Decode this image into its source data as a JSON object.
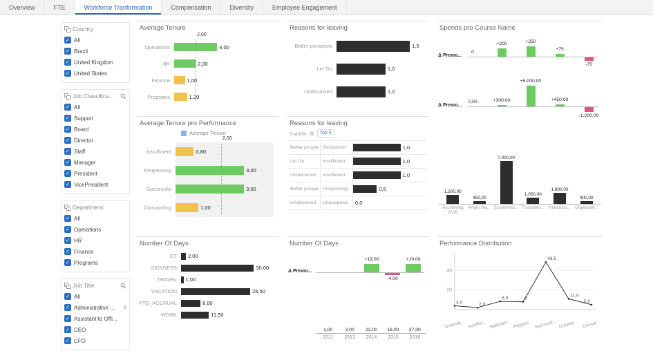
{
  "tabs": {
    "items": [
      {
        "label": "Overview",
        "active": false
      },
      {
        "label": "FTE",
        "active": false
      },
      {
        "label": "Workforce Tranformation",
        "active": true
      },
      {
        "label": "Compensation",
        "active": false
      },
      {
        "label": "Diversity",
        "active": false
      },
      {
        "label": "Employee Engagement",
        "active": false
      }
    ]
  },
  "colors": {
    "green": "#6ecb63",
    "yellow": "#f0c24b",
    "dark": "#2e2e2e",
    "pink": "#e2557e",
    "blue_accent": "#2a6fc0",
    "legend_blue": "#85b6e0",
    "checkbox_blue": "#2b6fc2"
  },
  "filters": {
    "groups": [
      {
        "title": "Country",
        "has_search": false,
        "items": [
          {
            "label": "All",
            "checked": true
          },
          {
            "label": "Brazil",
            "checked": true
          },
          {
            "label": "United Kingdom",
            "checked": true
          },
          {
            "label": "United States",
            "checked": true
          }
        ]
      },
      {
        "title": "Job Classifica...",
        "has_search": true,
        "items": [
          {
            "label": "All",
            "checked": true
          },
          {
            "label": "Support",
            "checked": true
          },
          {
            "label": "Board",
            "checked": true
          },
          {
            "label": "Director",
            "checked": true
          },
          {
            "label": "Staff",
            "checked": true
          },
          {
            "label": "Manager",
            "checked": true
          },
          {
            "label": "President",
            "checked": true
          },
          {
            "label": "VicePresident",
            "checked": true
          }
        ]
      },
      {
        "title": "Department",
        "has_search": false,
        "items": [
          {
            "label": "All",
            "checked": true
          },
          {
            "label": "Operations",
            "checked": true
          },
          {
            "label": "HR",
            "checked": true
          },
          {
            "label": "Finance",
            "checked": true
          },
          {
            "label": "Programs",
            "checked": true
          }
        ]
      },
      {
        "title": "Job Title",
        "has_search": true,
        "items": [
          {
            "label": "All",
            "checked": true
          },
          {
            "label": "Administrative ...",
            "checked": true,
            "badge": "8"
          },
          {
            "label": "Assistant to Offi...",
            "checked": true
          },
          {
            "label": "CEO",
            "checked": true
          },
          {
            "label": "CFO",
            "checked": true
          }
        ]
      }
    ]
  },
  "chart_data": [
    {
      "type": "bar",
      "title": "Average Tenure",
      "categories": [
        "Operations",
        "HR",
        "Finance",
        "Programs"
      ],
      "values": [
        4.0,
        2.0,
        1.0,
        1.2
      ],
      "value_labels": [
        "4,00",
        "2,00",
        "1,00",
        "1,20"
      ],
      "bar_colors": [
        "green",
        "green",
        "yellow",
        "yellow"
      ],
      "xmax": 9,
      "ref_line": {
        "value": 2.0,
        "label": "2,00"
      }
    },
    {
      "type": "bar",
      "title": "Reasons for leaving",
      "categories": [
        "Better prospects",
        "Let Go",
        "Undisclosed"
      ],
      "values": [
        1.5,
        1.0,
        1.0
      ],
      "value_labels": [
        "1,5",
        "1,0",
        "1,0"
      ],
      "bar_colors": [
        "dark",
        "dark",
        "dark"
      ],
      "xmax": 1.75
    },
    {
      "type": "spends",
      "title": "Spends pro Course Name",
      "waterfalls": [
        {
          "label": "Δ Previo...",
          "max": 250,
          "items": [
            {
              "text": "0",
              "v": 0
            },
            {
              "text": "+200",
              "v": 200
            },
            {
              "text": "+250",
              "v": 250
            },
            {
              "text": "+75",
              "v": 75
            },
            {
              "text": "-75",
              "v": -75
            }
          ]
        },
        {
          "label": "Δ Previo...",
          "max": 5000,
          "items": [
            {
              "text": "0,00",
              "v": 0
            },
            {
              "text": "+300,00",
              "v": 300
            },
            {
              "text": "+5.000,00",
              "v": 5000
            },
            {
              "text": "+450,00",
              "v": 450
            },
            {
              "text": "-1.200,00",
              "v": -1200
            }
          ]
        }
      ],
      "column": {
        "categories": [
          "Accounting 2016",
          "Anger Ma...",
          "Economics...",
          "Foundatio...",
          "Introducti...",
          "Organizati..."
        ],
        "values": [
          1500,
          450,
          7000,
          1050,
          1800,
          400
        ],
        "value_labels": [
          "1.500,00",
          "450,00",
          "7.000,00",
          "1.050,00",
          "1.800,00",
          "400,00"
        ]
      }
    },
    {
      "type": "bar",
      "title": "Average Tenure pro Performance",
      "legend": {
        "label": "Average Tenure"
      },
      "categories": [
        "Insufficient",
        "Progressing",
        "Successful",
        "Outstanding"
      ],
      "values": [
        0.8,
        3.0,
        3.0,
        1.0
      ],
      "value_labels": [
        "0,80",
        "3,00",
        "3,00",
        "1,00"
      ],
      "bar_colors": [
        "yellow",
        "green",
        "green",
        "yellow"
      ],
      "xmax": 4.3,
      "ref_line": {
        "value": 2.0,
        "label": "2,00"
      },
      "plot_bg": "#f1f1f1"
    },
    {
      "type": "bar2",
      "title": "Reasons for leaving",
      "subtitle": {
        "left": "Subtitle",
        "right": "Top 5"
      },
      "xmax": 1.4,
      "rows": [
        {
          "label1": "Better prospe...",
          "label2": "Successful",
          "value": 1.0,
          "value_label": "1,0"
        },
        {
          "label1": "Let Go",
          "label2": "Insufficient",
          "value": 1.0,
          "value_label": "1,0"
        },
        {
          "label1": "Undisclosed",
          "label2": "Insufficient",
          "value": 1.0,
          "value_label": "1,0"
        },
        {
          "label1": "Better prospe...",
          "label2": "Progressing",
          "value": 0.5,
          "value_label": "0,5"
        },
        {
          "label1": "Undisclosed",
          "label2": "Unassigned",
          "value": 0.0,
          "value_label": "0,0"
        }
      ]
    },
    {
      "type": "bar",
      "title": "Number Of Days",
      "categories": [
        "OT",
        "SICKNESS",
        "TRAVEL",
        "VACATION",
        "PTO_ACCRUAL",
        "WORK"
      ],
      "values": [
        2.0,
        30.0,
        1.0,
        28.5,
        8.0,
        11.5
      ],
      "value_labels": [
        "2,00",
        "30,00",
        "1,00",
        "28,50",
        "8,00",
        "11,50"
      ],
      "bar_colors": [
        "dark",
        "dark",
        "dark",
        "dark",
        "dark",
        "dark"
      ],
      "xmax": 37
    },
    {
      "type": "delta",
      "title": "Number Of Days",
      "delta_label": "Δ Previo...",
      "categories": [
        "2011",
        "2013",
        "2014",
        "2015",
        "2016"
      ],
      "totals": [
        "1,00",
        "3,00",
        "22,00",
        "18,00",
        "37,00"
      ],
      "deltas": [
        null,
        null,
        {
          "text": "+19,00",
          "v": 19
        },
        {
          "text": "-4,00",
          "v": -4
        },
        {
          "text": "+19,00",
          "v": 19
        }
      ],
      "max": 19
    },
    {
      "type": "line",
      "title": "Performance Distribution",
      "categories": [
        "Unassig...",
        "Insuffici...",
        "Satisfact...",
        "Progres...",
        "Successf...",
        "Outstan...",
        "Extraor..."
      ],
      "values": [
        4.0,
        2.0,
        8.5,
        8.0,
        48.5,
        11.0,
        5.0
      ],
      "point_labels": [
        "4,0",
        "2,0",
        "8,5",
        "8",
        "48,5",
        "11,0",
        "5,0"
      ],
      "yticks": [
        20,
        40
      ],
      "ymax": 55
    }
  ]
}
